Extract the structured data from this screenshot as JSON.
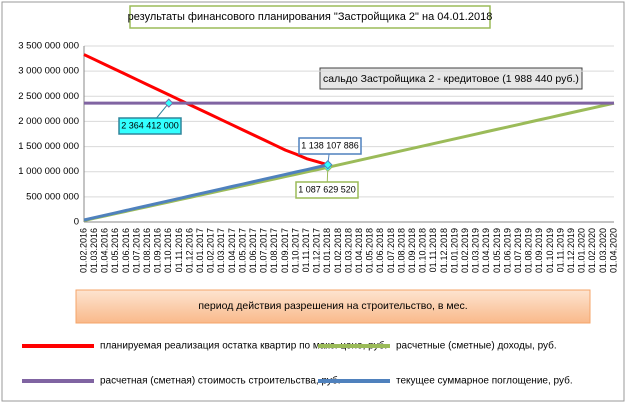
{
  "chart_data": {
    "type": "line",
    "title": "результаты финансового планирования \"Застройщика  2\" на 04.01.2018",
    "annotation": "сальдо Застройщика 2 - кредитовое (1 988 440 руб.)",
    "x_label": "период  действия разрешения на строительство, в мес.",
    "categories": [
      "01.02.2016",
      "01.03.2016",
      "01.04.2016",
      "01.05.2016",
      "01.06.2016",
      "01.07.2016",
      "01.08.2016",
      "01.09.2016",
      "01.10.2016",
      "01.11.2016",
      "01.12.2016",
      "01.01.2017",
      "01.02.2017",
      "01.03.2017",
      "01.04.2017",
      "01.05.2017",
      "01.06.2017",
      "01.07.2017",
      "01.08.2017",
      "01.09.2017",
      "01.10.2017",
      "01.11.2017",
      "01.12.2017",
      "01.01.2018",
      "01.02.2018",
      "01.03.2018",
      "01.04.2018",
      "01.05.2018",
      "01.06.2018",
      "01.07.2018",
      "01.08.2018",
      "01.09.2018",
      "01.10.2018",
      "01.11.2018",
      "01.12.2018",
      "01.01.2019",
      "01.02.2019",
      "01.03.2019",
      "01.04.2019",
      "01.05.2019",
      "01.06.2019",
      "01.07.2019",
      "01.08.2019",
      "01.09.2019",
      "01.10.2019",
      "01.11.2019",
      "01.12.2019",
      "01.01.2020",
      "01.02.2020",
      "01.03.2020",
      "01.04.2020"
    ],
    "series": [
      {
        "name": "планируемая реализация остатка квартир по макс. цене, руб.",
        "color": "#ff0000",
        "values": [
          3330000000,
          3230000000,
          3130000000,
          3030000000,
          2930000000,
          2830000000,
          2730000000,
          2630000000,
          2530000000,
          2430000000,
          2330000000,
          2230000000,
          2130000000,
          2030000000,
          1930000000,
          1830000000,
          1730000000,
          1630000000,
          1530000000,
          1430000000,
          1350000000,
          1260000000,
          1200000000,
          1138000000,
          null,
          null,
          null,
          null,
          null,
          null,
          null,
          null,
          null,
          null,
          null,
          null,
          null,
          null,
          null,
          null,
          null,
          null,
          null,
          null,
          null,
          null,
          null,
          null,
          null,
          null,
          null
        ]
      },
      {
        "name": "расчетные (сметные) доходы, руб.",
        "color": "#9bbb59",
        "values": [
          30000000,
          76000000,
          122000000,
          168000000,
          214000000,
          260000000,
          306000000,
          352000000,
          398000000,
          444000000,
          490000000,
          536000000,
          582000000,
          628000000,
          674000000,
          720000000,
          766000000,
          812000000,
          858000000,
          904000000,
          950000000,
          996000000,
          1042000000,
          1087629520,
          1135000000,
          1182000000,
          1229000000,
          1276000000,
          1324000000,
          1371000000,
          1418000000,
          1466000000,
          1513000000,
          1560000000,
          1607000000,
          1655000000,
          1702000000,
          1749000000,
          1797000000,
          1844000000,
          1891000000,
          1938000000,
          1986000000,
          2033000000,
          2080000000,
          2128000000,
          2175000000,
          2222000000,
          2269000000,
          2317000000,
          2364412000
        ],
        "value_labels": [
          null,
          null,
          null,
          null,
          null,
          null,
          null,
          null,
          null,
          null,
          null,
          null,
          null,
          null,
          null,
          null,
          null,
          null,
          null,
          null,
          null,
          null,
          null,
          "1 087 629 520",
          null,
          null,
          null,
          null,
          null,
          null,
          null,
          null,
          null,
          null,
          null,
          null,
          null,
          null,
          null,
          null,
          null,
          null,
          null,
          null,
          null,
          null,
          null,
          null,
          null,
          null,
          null
        ]
      },
      {
        "name": "расчетная (сметная) стоимость строительства, руб.",
        "color": "#8064a2",
        "values": [
          2364412000,
          2364412000,
          2364412000,
          2364412000,
          2364412000,
          2364412000,
          2364412000,
          2364412000,
          2364412000,
          2364412000,
          2364412000,
          2364412000,
          2364412000,
          2364412000,
          2364412000,
          2364412000,
          2364412000,
          2364412000,
          2364412000,
          2364412000,
          2364412000,
          2364412000,
          2364412000,
          2364412000,
          2364412000,
          2364412000,
          2364412000,
          2364412000,
          2364412000,
          2364412000,
          2364412000,
          2364412000,
          2364412000,
          2364412000,
          2364412000,
          2364412000,
          2364412000,
          2364412000,
          2364412000,
          2364412000,
          2364412000,
          2364412000,
          2364412000,
          2364412000,
          2364412000,
          2364412000,
          2364412000,
          2364412000,
          2364412000,
          2364412000,
          2364412000
        ],
        "value_labels": [
          null,
          null,
          null,
          null,
          null,
          null,
          null,
          null,
          "2 364 412 000",
          null,
          null,
          null,
          null,
          null,
          null,
          null,
          null,
          null,
          null,
          null,
          null,
          null,
          null,
          null,
          null,
          null,
          null,
          null,
          null,
          null,
          null,
          null,
          null,
          null,
          null,
          null,
          null,
          null,
          null,
          null,
          null,
          null,
          null,
          null,
          null,
          null,
          null,
          null,
          null,
          null,
          null
        ]
      },
      {
        "name": "текущее суммарное поглощение, руб.",
        "color": "#4f81bd",
        "values": [
          40000000,
          88000000,
          135000000,
          183000000,
          231000000,
          279000000,
          326000000,
          374000000,
          422000000,
          469000000,
          517000000,
          565000000,
          612000000,
          660000000,
          708000000,
          755000000,
          803000000,
          851000000,
          898000000,
          946000000,
          994000000,
          1041000000,
          1089000000,
          1138107886,
          null,
          null,
          null,
          null,
          null,
          null,
          null,
          null,
          null,
          null,
          null,
          null,
          null,
          null,
          null,
          null,
          null,
          null,
          null,
          null,
          null,
          null,
          null,
          null,
          null,
          null,
          null
        ],
        "value_labels": [
          null,
          null,
          null,
          null,
          null,
          null,
          null,
          null,
          null,
          null,
          null,
          null,
          null,
          null,
          null,
          null,
          null,
          null,
          null,
          null,
          null,
          null,
          null,
          "1 138 107 886",
          null,
          null,
          null,
          null,
          null,
          null,
          null,
          null,
          null,
          null,
          null,
          null,
          null,
          null,
          null,
          null,
          null,
          null,
          null,
          null,
          null,
          null,
          null,
          null,
          null,
          null,
          null
        ]
      }
    ],
    "ylim": [
      0,
      3500000000
    ],
    "yticks": [
      {
        "value": 0,
        "label": "0"
      },
      {
        "value": 500000000,
        "label": "500 000 000"
      },
      {
        "value": 1000000000,
        "label": "1 000 000 000"
      },
      {
        "value": 1500000000,
        "label": "1 500 000 000"
      },
      {
        "value": 2000000000,
        "label": "2 000 000 000"
      },
      {
        "value": 2500000000,
        "label": "2 500 000 000"
      },
      {
        "value": 3000000000,
        "label": "3 000 000 000"
      },
      {
        "value": 3500000000,
        "label": "3 500 000 000"
      }
    ],
    "grid": true
  }
}
